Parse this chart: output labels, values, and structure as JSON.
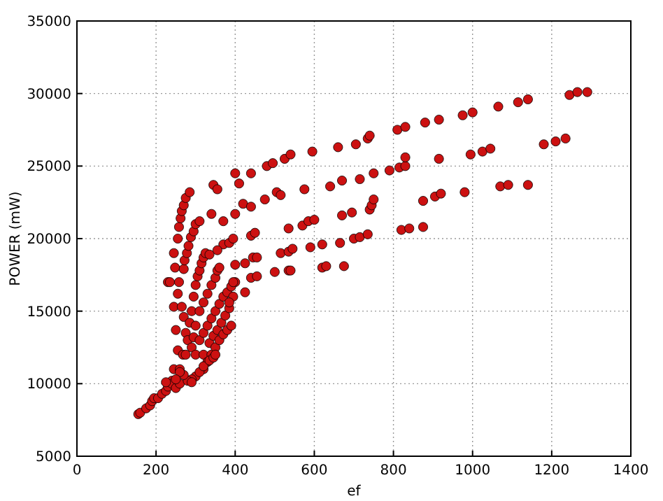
{
  "chart_data": {
    "type": "scatter",
    "xlabel": "ef",
    "ylabel": "POWER (mW)",
    "xlim": [
      0,
      1400
    ],
    "xticks": [
      0,
      200,
      400,
      600,
      800,
      1000,
      1200,
      1400
    ],
    "ylim": [
      5000,
      35000
    ],
    "yticks": [
      5000,
      10000,
      15000,
      20000,
      25000,
      30000,
      35000
    ],
    "grid": true,
    "marker": "circle",
    "series": [
      {
        "color": "#cc1111",
        "x": [
          400,
          440,
          480,
          495,
          525,
          540,
          595,
          660,
          705,
          735,
          740,
          810,
          830,
          880,
          915,
          975,
          1000,
          1065,
          1115,
          1140,
          1245,
          1265,
          1290,
          345,
          355,
          410,
          420,
          440,
          475,
          505,
          515,
          575,
          640,
          670,
          715,
          750,
          790,
          815,
          830,
          830,
          915,
          995,
          1025,
          1045,
          1180,
          1210,
          1235,
          340,
          370,
          400,
          440,
          450,
          535,
          570,
          585,
          600,
          670,
          695,
          740,
          745,
          750,
          820,
          840,
          875,
          875,
          905,
          920,
          980,
          1070,
          1090,
          1140,
          370,
          385,
          395,
          355,
          400,
          425,
          445,
          455,
          500,
          515,
          535,
          545,
          590,
          620,
          665,
          700,
          715,
          735,
          535,
          540,
          620,
          630,
          675,
          440,
          455,
          425,
          400,
          230,
          235,
          245,
          250,
          255,
          245,
          248,
          255,
          258,
          262,
          265,
          270,
          275,
          285,
          245,
          240,
          255,
          258,
          265,
          270,
          275,
          270,
          272,
          278,
          282,
          288,
          295,
          300,
          310,
          268,
          260,
          285,
          290,
          295,
          300,
          305,
          310,
          315,
          320,
          325,
          335,
          280,
          275,
          300,
          310,
          320,
          330,
          340,
          350,
          355,
          360,
          295,
          290,
          310,
          320,
          330,
          340,
          350,
          360,
          370,
          380,
          390,
          395,
          300,
          320,
          335,
          345,
          355,
          365,
          375,
          385,
          395,
          385,
          300,
          320,
          330,
          340,
          350,
          360,
          370,
          380,
          390,
          290,
          310,
          320,
          335,
          345,
          350,
          155,
          160,
          175,
          185,
          190,
          195,
          205,
          215,
          225,
          230,
          240,
          250,
          260,
          280,
          290,
          270,
          260,
          250,
          225
        ],
        "values": [
          24500,
          24500,
          25000,
          25200,
          25500,
          25800,
          26000,
          26300,
          26500,
          26900,
          27100,
          27500,
          27700,
          28000,
          28200,
          28500,
          28700,
          29100,
          29400,
          29600,
          29900,
          30100,
          30100,
          23700,
          23400,
          23800,
          22400,
          22200,
          22700,
          23200,
          23000,
          23400,
          23600,
          24000,
          24100,
          24500,
          24700,
          24900,
          25000,
          25600,
          25500,
          25800,
          26000,
          26200,
          26500,
          26700,
          26900,
          21700,
          21200,
          21700,
          20200,
          20400,
          20700,
          20900,
          21200,
          21300,
          21600,
          21800,
          22000,
          22300,
          22700,
          20600,
          20700,
          22600,
          20800,
          22900,
          23100,
          23200,
          23600,
          23700,
          23700,
          19600,
          19700,
          20000,
          19200,
          18200,
          18300,
          18700,
          18700,
          17700,
          19000,
          19100,
          19300,
          19400,
          19600,
          19700,
          20000,
          20100,
          20300,
          17800,
          17800,
          18000,
          18100,
          18100,
          17300,
          17400,
          16300,
          17000,
          17000,
          17000,
          15300,
          13700,
          12300,
          19000,
          18000,
          20000,
          20800,
          21400,
          21900,
          22300,
          22800,
          23200,
          11000,
          10200,
          16200,
          17000,
          15300,
          14600,
          13500,
          17900,
          18500,
          19000,
          19500,
          20100,
          20500,
          21000,
          21200,
          12000,
          11000,
          14200,
          15000,
          16000,
          16800,
          17400,
          17800,
          18300,
          18700,
          19000,
          18900,
          13000,
          12000,
          14000,
          15000,
          15600,
          16200,
          16800,
          17300,
          17800,
          18000,
          13200,
          12500,
          13000,
          13500,
          14000,
          14500,
          15000,
          15500,
          16000,
          16300,
          16700,
          17000,
          12000,
          12000,
          12800,
          13300,
          13700,
          14200,
          14700,
          15200,
          16000,
          15600,
          10500,
          11000,
          11500,
          12000,
          12500,
          13000,
          13400,
          13700,
          14000,
          10300,
          10800,
          11200,
          11600,
          11800,
          12000,
          7900,
          8000,
          8300,
          8500,
          8800,
          9000,
          9000,
          9300,
          9500,
          9800,
          10000,
          9700,
          10000,
          10200,
          10100,
          10600,
          10800,
          10300,
          10100
        ]
      }
    ]
  }
}
